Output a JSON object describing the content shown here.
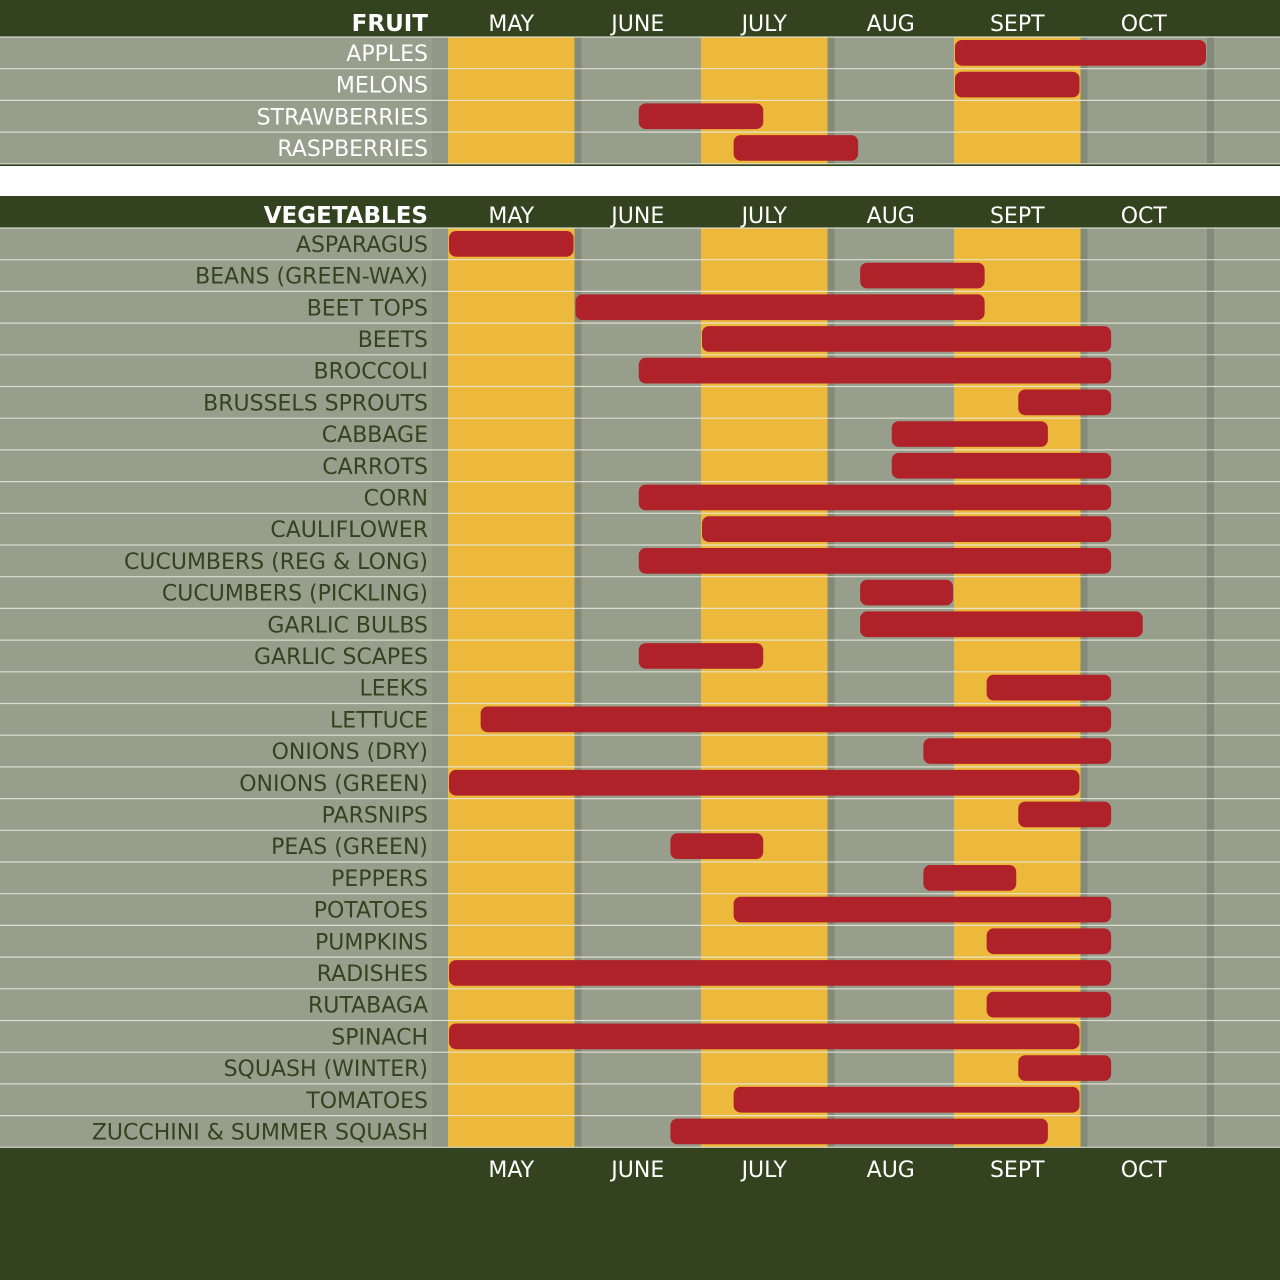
{
  "colors": {
    "frame": "#33421f",
    "row_bg": "#989e8c",
    "alt_month": "#ecb93c",
    "bar": "#b02229",
    "header_text": "#ffffff",
    "label_text": "#33421f",
    "white_gap": "#ffffff"
  },
  "bottom_months": [
    "MAY",
    "JUNE",
    "JULY",
    "AUG",
    "SEPT",
    "OCT"
  ],
  "chart_data": [
    {
      "type": "gantt",
      "title": "FRUIT",
      "months": [
        "MAY",
        "JUNE",
        "JULY",
        "AUG",
        "SEPT",
        "OCT"
      ],
      "month_unit": "months from start of May (0 = May 1, 6 = end of Oct)",
      "rows": [
        {
          "name": "APPLES",
          "start": 4.0,
          "end": 6.0
        },
        {
          "name": "MELONS",
          "start": 4.0,
          "end": 5.0
        },
        {
          "name": "STRAWBERRIES",
          "start": 1.5,
          "end": 2.5
        },
        {
          "name": "RASPBERRIES",
          "start": 2.25,
          "end": 3.25
        }
      ]
    },
    {
      "type": "gantt",
      "title": "VEGETABLES",
      "months": [
        "MAY",
        "JUNE",
        "JULY",
        "AUG",
        "SEPT",
        "OCT"
      ],
      "month_unit": "months from start of May (0 = May 1, 6 = end of Oct)",
      "rows": [
        {
          "name": "ASPARAGUS",
          "start": 0.0,
          "end": 1.0
        },
        {
          "name": "BEANS (GREEN-WAX)",
          "start": 3.25,
          "end": 4.25
        },
        {
          "name": "BEET TOPS",
          "start": 1.0,
          "end": 4.25
        },
        {
          "name": "BEETS",
          "start": 2.0,
          "end": 5.25
        },
        {
          "name": "BROCCOLI",
          "start": 1.5,
          "end": 5.25
        },
        {
          "name": "BRUSSELS SPROUTS",
          "start": 4.5,
          "end": 5.25
        },
        {
          "name": "CABBAGE",
          "start": 3.5,
          "end": 4.75
        },
        {
          "name": "CARROTS",
          "start": 3.5,
          "end": 5.25
        },
        {
          "name": "CORN",
          "start": 1.5,
          "end": 5.25
        },
        {
          "name": "CAULIFLOWER",
          "start": 2.0,
          "end": 5.25
        },
        {
          "name": "CUCUMBERS (REG & LONG)",
          "start": 1.5,
          "end": 5.25
        },
        {
          "name": "CUCUMBERS (PICKLING)",
          "start": 3.25,
          "end": 4.0
        },
        {
          "name": "GARLIC BULBS",
          "start": 3.25,
          "end": 5.5
        },
        {
          "name": "GARLIC SCAPES",
          "start": 1.5,
          "end": 2.5
        },
        {
          "name": "LEEKS",
          "start": 4.25,
          "end": 5.25
        },
        {
          "name": "LETTUCE",
          "start": 0.25,
          "end": 5.25
        },
        {
          "name": "ONIONS (DRY)",
          "start": 3.75,
          "end": 5.25
        },
        {
          "name": "ONIONS (GREEN)",
          "start": 0.0,
          "end": 5.0
        },
        {
          "name": "PARSNIPS",
          "start": 4.5,
          "end": 5.25
        },
        {
          "name": "PEAS (GREEN)",
          "start": 1.75,
          "end": 2.5
        },
        {
          "name": "PEPPERS",
          "start": 3.75,
          "end": 4.5
        },
        {
          "name": "POTATOES",
          "start": 2.25,
          "end": 5.25
        },
        {
          "name": "PUMPKINS",
          "start": 4.25,
          "end": 5.25
        },
        {
          "name": "RADISHES",
          "start": 0.0,
          "end": 5.25
        },
        {
          "name": "RUTABAGA",
          "start": 4.25,
          "end": 5.25
        },
        {
          "name": "SPINACH",
          "start": 0.0,
          "end": 5.0
        },
        {
          "name": "SQUASH (WINTER)",
          "start": 4.5,
          "end": 5.25
        },
        {
          "name": "TOMATOES",
          "start": 2.25,
          "end": 5.0
        },
        {
          "name": "ZUCCHINI & SUMMER SQUASH",
          "start": 1.75,
          "end": 4.75
        }
      ]
    }
  ]
}
